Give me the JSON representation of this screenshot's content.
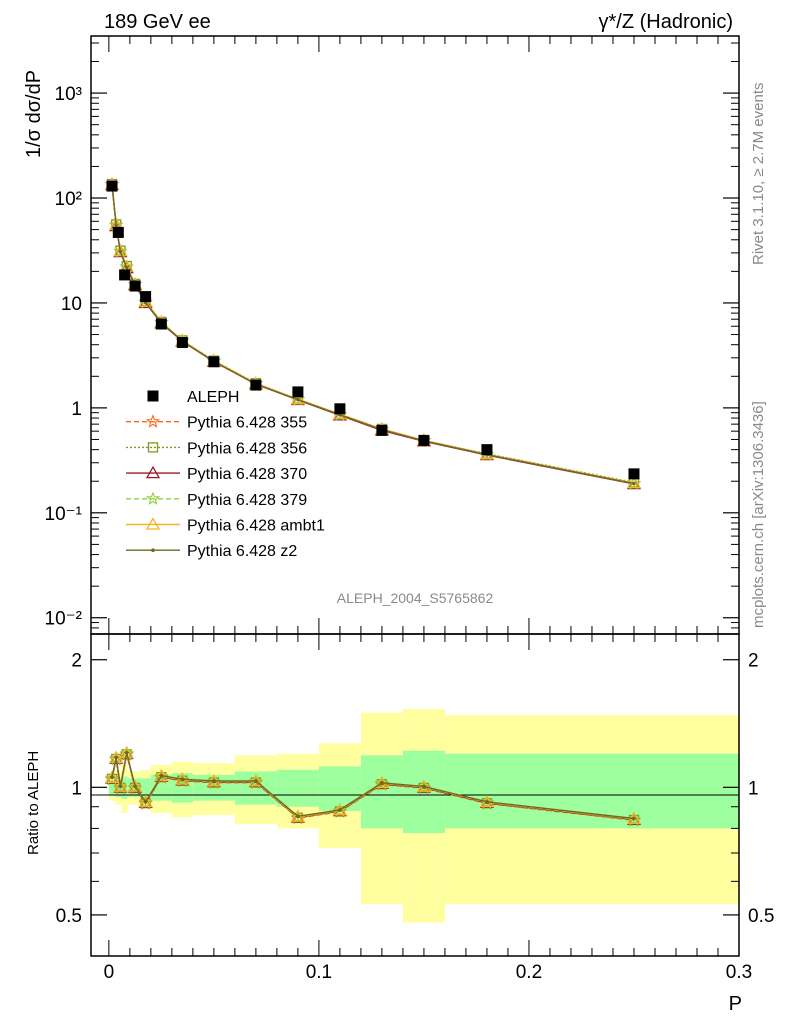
{
  "header": {
    "left": "189 GeV ee",
    "right": "γ*/Z (Hadronic)"
  },
  "side_text": {
    "rivet": "Rivet 3.1.10, ≥ 2.7M events",
    "mcplots": "mcplots.cern.ch [arXiv:1306.3436]"
  },
  "analysis_id": "ALEPH_2004_S5765862",
  "colors": {
    "data": "#000000",
    "p355": "#ff6a1a",
    "p356": "#7c9d1c",
    "p370": "#9b1b2e",
    "p379": "#8fd23a",
    "ambt1": "#f5b328",
    "z2": "#6f6a22",
    "band_inner": "#9dff9d",
    "band_outer": "#ffff9f"
  },
  "chart_data": [
    {
      "type": "line",
      "panel": "main",
      "ylabel": "1/σ dσ/dP",
      "yscale": "log",
      "ylim": [
        0.007,
        3500
      ],
      "xlim": [
        -0.0085,
        0.3
      ],
      "y_ticks": [
        {
          "value": 0.01,
          "label": "10⁻²"
        },
        {
          "value": 0.1,
          "label": "10⁻¹"
        },
        {
          "value": 1,
          "label": "1"
        },
        {
          "value": 10,
          "label": "10"
        },
        {
          "value": 100,
          "label": "10²"
        },
        {
          "value": 1000,
          "label": "10³"
        }
      ],
      "data_series": {
        "name": "ALEPH",
        "x": [
          0.0015,
          0.0045,
          0.0075,
          0.0125,
          0.0175,
          0.025,
          0.035,
          0.05,
          0.07,
          0.09,
          0.11,
          0.13,
          0.15,
          0.18,
          0.25
        ],
        "y": [
          130,
          47,
          18.5,
          14.5,
          11.5,
          6.3,
          4.2,
          2.75,
          1.65,
          1.42,
          0.98,
          0.61,
          0.49,
          0.4,
          0.235
        ]
      },
      "series": [
        {
          "name": "Pythia 6.428 355",
          "key": "p355",
          "marker": "star",
          "dash": "5,3",
          "y": [
            135,
            55,
            31,
            22,
            15,
            10.2,
            6.5,
            4.35,
            2.8,
            1.7,
            1.2,
            0.86,
            0.62,
            0.49,
            0.36,
            0.19
          ]
        },
        {
          "name": "Pythia 6.428 356",
          "key": "p356",
          "marker": "square",
          "dash": "2,2",
          "y": [
            136,
            56,
            31.5,
            22.5,
            15.2,
            10.4,
            6.6,
            4.4,
            2.82,
            1.72,
            1.21,
            0.87,
            0.63,
            0.49,
            0.365,
            0.195
          ]
        },
        {
          "name": "Pythia 6.428 370",
          "key": "p370",
          "marker": "triangle",
          "dash": "",
          "y": [
            133,
            54,
            30.5,
            21.5,
            14.8,
            10.0,
            6.4,
            4.3,
            2.76,
            1.68,
            1.19,
            0.85,
            0.61,
            0.48,
            0.355,
            0.188
          ]
        },
        {
          "name": "Pythia 6.428 379",
          "key": "p379",
          "marker": "star",
          "dash": "5,3",
          "y": [
            134,
            55,
            31,
            22,
            15,
            10.1,
            6.5,
            4.35,
            2.78,
            1.69,
            1.2,
            0.86,
            0.62,
            0.485,
            0.36,
            0.19
          ]
        },
        {
          "name": "Pythia 6.428 ambt1",
          "key": "ambt1",
          "marker": "triangle",
          "dash": "",
          "y": [
            135,
            55.5,
            31.2,
            22.2,
            15.1,
            10.3,
            6.55,
            4.38,
            2.81,
            1.71,
            1.21,
            0.87,
            0.63,
            0.49,
            0.362,
            0.192
          ]
        },
        {
          "name": "Pythia 6.428 z2",
          "key": "z2",
          "marker": "dot",
          "dash": "",
          "y": [
            134,
            54.5,
            30.8,
            21.8,
            14.9,
            10.1,
            6.45,
            4.32,
            2.77,
            1.69,
            1.2,
            0.86,
            0.62,
            0.485,
            0.358,
            0.19
          ]
        }
      ],
      "mc_x": [
        0.0015,
        0.0035,
        0.0055,
        0.0085,
        0.0125,
        0.0175,
        0.025,
        0.035,
        0.05,
        0.07,
        0.09,
        0.11,
        0.13,
        0.15,
        0.18,
        0.25
      ]
    },
    {
      "type": "line",
      "panel": "ratio",
      "ylabel": "Ratio to ALEPH",
      "xlabel": "P",
      "yscale": "log",
      "ylim": [
        0.4,
        2.3
      ],
      "xlim": [
        -0.0085,
        0.3
      ],
      "y_ticks": [
        {
          "value": 0.5,
          "label": "0.5"
        },
        {
          "value": 1,
          "label": "1"
        },
        {
          "value": 2,
          "label": "2"
        }
      ],
      "x_ticks": [
        {
          "value": 0,
          "label": "0"
        },
        {
          "value": 0.1,
          "label": "0.1"
        },
        {
          "value": 0.2,
          "label": "0.2"
        },
        {
          "value": 0.3,
          "label": "0.3"
        }
      ],
      "bands": [
        {
          "x0": 0.0,
          "x1": 0.003,
          "inner": [
            0.96,
            1.04
          ],
          "outer": [
            0.93,
            1.07
          ]
        },
        {
          "x0": 0.003,
          "x1": 0.006,
          "inner": [
            0.95,
            1.05
          ],
          "outer": [
            0.91,
            1.09
          ]
        },
        {
          "x0": 0.006,
          "x1": 0.009,
          "inner": [
            0.94,
            1.06
          ],
          "outer": [
            0.87,
            1.13
          ]
        },
        {
          "x0": 0.009,
          "x1": 0.015,
          "inner": [
            0.95,
            1.05
          ],
          "outer": [
            0.91,
            1.09
          ]
        },
        {
          "x0": 0.015,
          "x1": 0.02,
          "inner": [
            0.95,
            1.05
          ],
          "outer": [
            0.9,
            1.1
          ]
        },
        {
          "x0": 0.02,
          "x1": 0.03,
          "inner": [
            0.93,
            1.07
          ],
          "outer": [
            0.87,
            1.13
          ]
        },
        {
          "x0": 0.03,
          "x1": 0.04,
          "inner": [
            0.92,
            1.08
          ],
          "outer": [
            0.85,
            1.15
          ]
        },
        {
          "x0": 0.04,
          "x1": 0.06,
          "inner": [
            0.93,
            1.07
          ],
          "outer": [
            0.86,
            1.14
          ]
        },
        {
          "x0": 0.06,
          "x1": 0.08,
          "inner": [
            0.91,
            1.09
          ],
          "outer": [
            0.82,
            1.19
          ]
        },
        {
          "x0": 0.08,
          "x1": 0.1,
          "inner": [
            0.9,
            1.1
          ],
          "outer": [
            0.8,
            1.2
          ]
        },
        {
          "x0": 0.1,
          "x1": 0.12,
          "inner": [
            0.88,
            1.12
          ],
          "outer": [
            0.72,
            1.27
          ]
        },
        {
          "x0": 0.12,
          "x1": 0.14,
          "inner": [
            0.8,
            1.19
          ],
          "outer": [
            0.53,
            1.5
          ]
        },
        {
          "x0": 0.14,
          "x1": 0.16,
          "inner": [
            0.78,
            1.22
          ],
          "outer": [
            0.48,
            1.53
          ]
        },
        {
          "x0": 0.16,
          "x1": 0.3,
          "inner": [
            0.8,
            1.2
          ],
          "outer": [
            0.53,
            1.48
          ]
        }
      ],
      "mc_ratio": [
        1.05,
        1.17,
        1.0,
        1.2,
        1.0,
        0.92,
        1.06,
        1.04,
        1.03,
        1.03,
        0.85,
        0.88,
        1.02,
        1.0,
        0.92,
        0.84
      ],
      "mc_x": [
        0.0015,
        0.0035,
        0.0055,
        0.0085,
        0.0125,
        0.0175,
        0.025,
        0.035,
        0.05,
        0.07,
        0.09,
        0.11,
        0.13,
        0.15,
        0.18,
        0.25
      ]
    }
  ]
}
